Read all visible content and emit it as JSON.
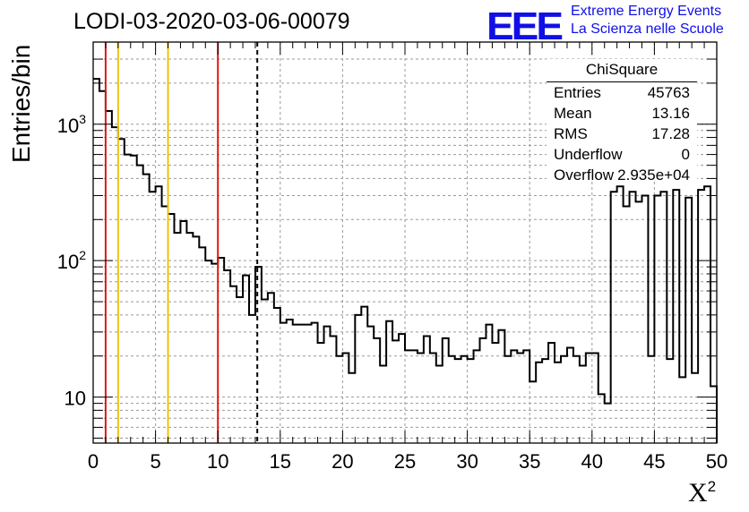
{
  "title": "LODI-03-2020-03-06-00079",
  "logo": {
    "mark": "EEE",
    "line1": "Extreme Energy Events",
    "line2": "La Scienza nelle Scuole"
  },
  "stats": {
    "name": "ChiSquare",
    "rows": [
      {
        "key": "Entries",
        "value": "45763"
      },
      {
        "key": "Mean",
        "value": "13.16"
      },
      {
        "key": "RMS",
        "value": "17.28"
      },
      {
        "key": "Underflow",
        "value": "0"
      },
      {
        "key": "Overflow",
        "value": "2.935e+04"
      }
    ]
  },
  "chart_data": {
    "type": "histogram",
    "xlabel": "X",
    "xlabel_sup": "2",
    "ylabel": "Entries/bin",
    "xlim": [
      0,
      50
    ],
    "ylim": [
      4.6,
      4000
    ],
    "yscale": "log",
    "grid": true,
    "x_ticks": [
      0,
      5,
      10,
      15,
      20,
      25,
      30,
      35,
      40,
      45,
      50
    ],
    "x_tick_labels": [
      "0",
      "5",
      "10",
      "15",
      "20",
      "25",
      "30",
      "35",
      "40",
      "45",
      "50"
    ],
    "y_ticks": [
      10,
      100,
      1000
    ],
    "y_tick_labels": [
      {
        "base": "10",
        "exp": ""
      },
      {
        "base": "10",
        "exp": "2"
      },
      {
        "base": "10",
        "exp": "3"
      }
    ],
    "bin_width": 0.5,
    "values": [
      2150,
      1750,
      1250,
      950,
      780,
      600,
      590,
      500,
      430,
      320,
      350,
      250,
      220,
      160,
      195,
      160,
      150,
      125,
      100,
      95,
      105,
      85,
      65,
      54,
      78,
      40,
      90,
      52,
      58,
      45,
      35,
      37,
      34,
      34,
      34,
      35,
      25,
      33,
      28,
      20,
      21,
      15,
      40,
      46,
      33,
      27,
      17,
      36,
      26,
      29,
      22,
      22,
      21,
      28,
      21,
      17,
      27,
      20,
      19,
      20,
      19,
      22,
      27,
      34,
      25,
      31,
      20,
      22,
      21,
      22,
      13,
      18,
      19,
      25,
      18,
      20,
      23,
      20,
      17,
      21,
      21,
      10.5,
      9,
      320,
      350,
      250,
      320,
      270,
      300,
      20,
      300,
      320,
      19,
      330,
      14,
      290,
      15,
      330,
      350,
      12
    ],
    "lines": [
      {
        "x": 1,
        "color": "#e01818",
        "style": "solid"
      },
      {
        "x": 2,
        "color": "#f2c20d",
        "style": "solid"
      },
      {
        "x": 6,
        "color": "#f2c20d",
        "style": "solid"
      },
      {
        "x": 10,
        "color": "#e01818",
        "style": "solid"
      },
      {
        "x": 13.16,
        "color": "#000000",
        "style": "dashed"
      }
    ]
  }
}
